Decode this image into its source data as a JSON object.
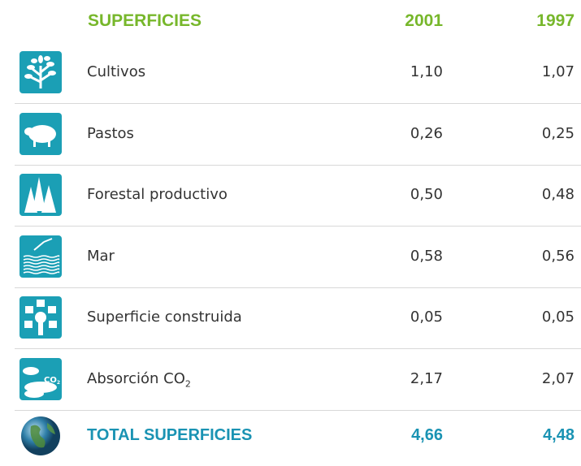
{
  "table": {
    "header": [
      "SUPERFICIES",
      "2001",
      "1997"
    ],
    "rows": [
      {
        "label": "Cultivos",
        "v2001": "1,10",
        "v1997": "1,07"
      },
      {
        "label": "Pastos",
        "v2001": "0,26",
        "v1997": "0,25"
      },
      {
        "label": "Forestal productivo",
        "v2001": "0,50",
        "v1997": "0,48"
      },
      {
        "label": "Mar",
        "v2001": "0,58",
        "v1997": "0,56"
      },
      {
        "label": "Superficie construida",
        "v2001": "0,05",
        "v1997": "0,05"
      },
      {
        "label": "Absorción CO",
        "label_sub": "2",
        "icon_text": "CO",
        "icon_sub": "2",
        "v2001": "2,17",
        "v1997": "2,07"
      }
    ],
    "total": {
      "label": "TOTAL SUPERFICIES",
      "v2001": "4,66",
      "v1997": "4,48"
    }
  }
}
